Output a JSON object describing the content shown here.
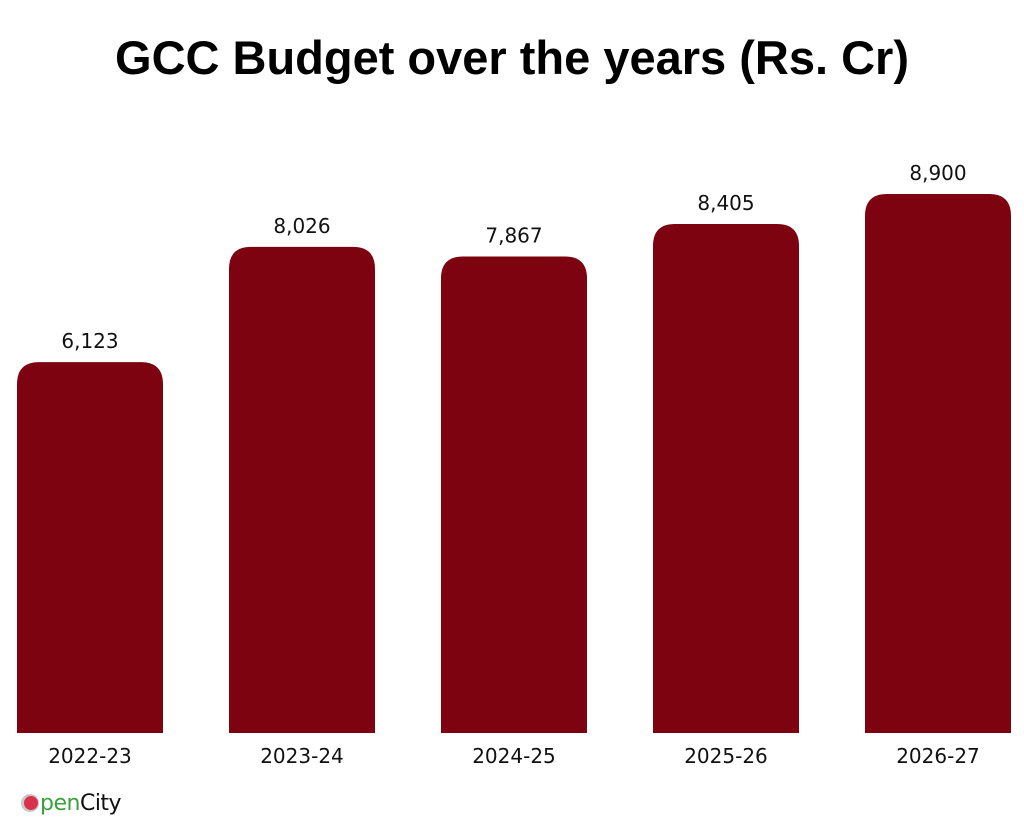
{
  "chart_data": {
    "type": "bar",
    "title": "GCC Budget over the years (Rs. Cr)",
    "categories": [
      "2022-23",
      "2023-24",
      "2024-25",
      "2025-26",
      "2026-27"
    ],
    "values": [
      6123,
      8026,
      7867,
      8405,
      8900
    ],
    "value_labels": [
      "6,123",
      "8,026",
      "7,867",
      "8,405",
      "8,900"
    ],
    "xlabel": "",
    "ylabel": "",
    "ylim": [
      0,
      8900
    ],
    "grid": false,
    "bar_color": "#7d0311"
  },
  "brand": {
    "logo_text_first": "O",
    "logo_text_green": "pen",
    "logo_text_rest": "City",
    "name": "OpenCity"
  }
}
